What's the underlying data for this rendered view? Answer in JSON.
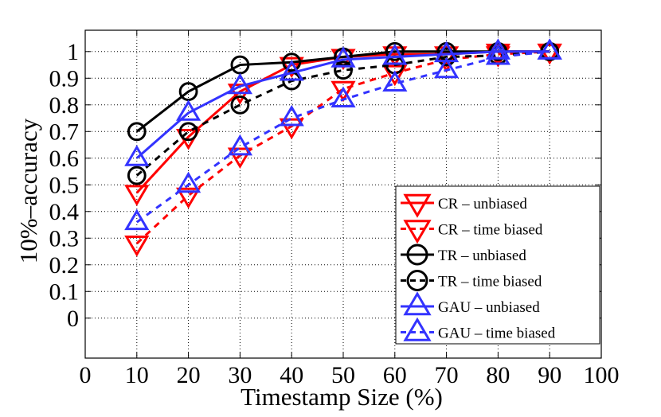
{
  "chart_data": {
    "type": "line",
    "title": "",
    "xlabel": "Timestamp Size (%)",
    "ylabel": "10%–accuracy",
    "xlim": [
      0,
      100
    ],
    "ylim": [
      -0.15,
      1.08
    ],
    "xticks": [
      0,
      10,
      20,
      30,
      40,
      50,
      60,
      70,
      80,
      90,
      100
    ],
    "yticks": [
      0,
      0.1,
      0.2,
      0.3,
      0.4,
      0.5,
      0.6,
      0.7,
      0.8,
      0.9,
      1
    ],
    "grid": true,
    "legend_position": "bottom-right",
    "x": [
      10,
      20,
      30,
      40,
      50,
      60,
      70,
      80,
      90
    ],
    "series": [
      {
        "name": "CR – unbiased",
        "color": "#ff0000",
        "dashed": false,
        "marker": "triangle-down",
        "values": [
          0.47,
          0.68,
          0.85,
          0.95,
          0.98,
          0.99,
          0.99,
          1.0,
          1.0
        ]
      },
      {
        "name": "CR – time biased",
        "color": "#ff0000",
        "dashed": true,
        "marker": "triangle-down",
        "values": [
          0.28,
          0.46,
          0.61,
          0.72,
          0.86,
          0.92,
          0.97,
          0.99,
          1.0
        ]
      },
      {
        "name": "TR – unbiased",
        "color": "#000000",
        "dashed": false,
        "marker": "circle",
        "values": [
          0.7,
          0.85,
          0.95,
          0.96,
          0.98,
          1.0,
          1.0,
          1.0,
          1.0
        ]
      },
      {
        "name": "TR – time biased",
        "color": "#000000",
        "dashed": true,
        "marker": "circle",
        "values": [
          0.535,
          0.7,
          0.8,
          0.89,
          0.93,
          0.95,
          0.98,
          0.985,
          1.0
        ]
      },
      {
        "name": "GAU – unbiased",
        "color": "#3333ff",
        "dashed": false,
        "marker": "triangle-up",
        "values": [
          0.6,
          0.77,
          0.87,
          0.92,
          0.97,
          0.98,
          0.99,
          1.0,
          1.0
        ]
      },
      {
        "name": "GAU – time biased",
        "color": "#3333ff",
        "dashed": true,
        "marker": "triangle-up",
        "values": [
          0.36,
          0.5,
          0.64,
          0.75,
          0.82,
          0.88,
          0.93,
          0.98,
          1.0
        ]
      }
    ]
  }
}
